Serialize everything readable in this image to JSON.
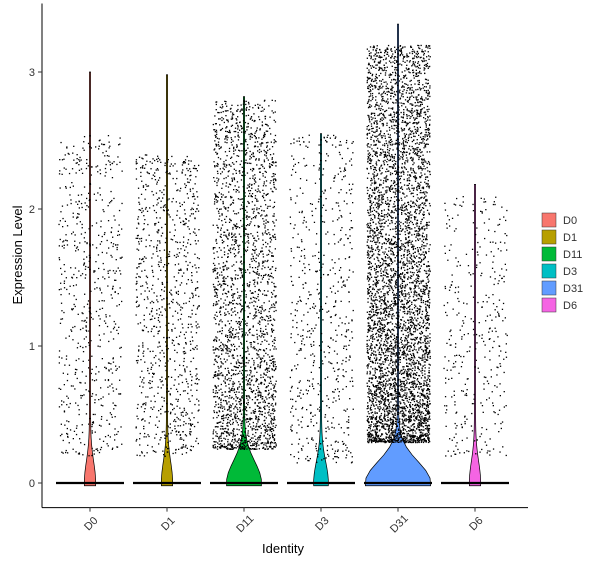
{
  "chart_data": {
    "type": "violin",
    "title": "",
    "xlabel": "Identity",
    "ylabel": "Expression Level",
    "ylim": [
      -0.18,
      3.5
    ],
    "yticks": [
      0,
      1,
      2,
      3
    ],
    "grid": false,
    "legend_position": "right",
    "legend_entries": [
      "D0",
      "D1",
      "D11",
      "D3",
      "D31",
      "D6"
    ],
    "categories": [
      "D0",
      "D1",
      "D11",
      "D3",
      "D31",
      "D6"
    ],
    "colors": [
      "#F8766D",
      "#B79F00",
      "#00BA38",
      "#00BFC4",
      "#619CFF",
      "#F564E3"
    ],
    "series": [
      {
        "name": "D0",
        "max": 3.0,
        "nonzero_points": 600,
        "nonzero_range": [
          0.2,
          2.55
        ],
        "zero_width": 0.15
      },
      {
        "name": "D1",
        "max": 2.98,
        "nonzero_points": 900,
        "nonzero_range": [
          0.2,
          2.4
        ],
        "zero_width": 0.15
      },
      {
        "name": "D11",
        "max": 2.82,
        "nonzero_points": 2400,
        "nonzero_range": [
          0.25,
          2.8
        ],
        "zero_width": 0.5
      },
      {
        "name": "D3",
        "max": 2.55,
        "nonzero_points": 600,
        "nonzero_range": [
          0.15,
          2.55
        ],
        "zero_width": 0.2
      },
      {
        "name": "D31",
        "max": 3.35,
        "nonzero_points": 5000,
        "nonzero_range": [
          0.3,
          3.2
        ],
        "zero_width": 0.95
      },
      {
        "name": "D6",
        "max": 2.18,
        "nonzero_points": 350,
        "nonzero_range": [
          0.2,
          2.1
        ],
        "zero_width": 0.15
      }
    ]
  }
}
